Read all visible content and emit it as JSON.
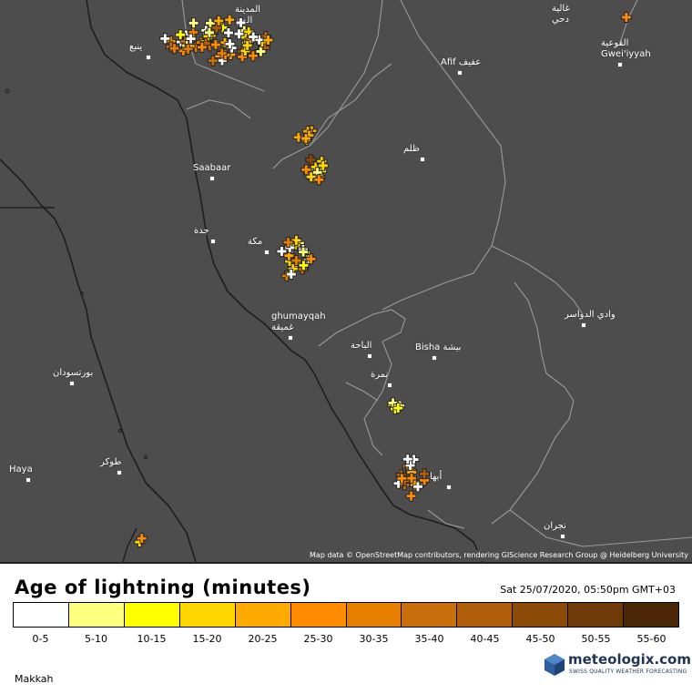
{
  "map": {
    "attribution": "Map data © OpenStreetMap contributors, rendering GIScience Research Group @ Heidelberg University",
    "cities": [
      {
        "label": "المدينة\nالمن"
      },
      {
        "label": "ينبع"
      },
      {
        "label": "Afif عفيف"
      },
      {
        "label": "القوعية\nGwei'iyyah"
      },
      {
        "label": "غالية\nدحي"
      },
      {
        "label": "ظلم"
      },
      {
        "label": "Saabaar"
      },
      {
        "label": "جدة"
      },
      {
        "label": "مكة"
      },
      {
        "label": "ghumayqah\nغميقة"
      },
      {
        "label": "الباحة"
      },
      {
        "label": "Bisha بيشة"
      },
      {
        "label": "وادي الدواسر"
      },
      {
        "label": "نمرة"
      },
      {
        "label": "بورتسودان"
      },
      {
        "label": "طوكر"
      },
      {
        "label": "Haya"
      },
      {
        "label": "أبها"
      },
      {
        "label": "نجران"
      }
    ],
    "strikes_icon": "plus-icon"
  },
  "legend": {
    "title": "Age of lightning (minutes)",
    "timestamp": "Sat 25/07/2020, 05:50pm GMT+03",
    "ranges": [
      {
        "label": "0-5",
        "color": "#ffffff"
      },
      {
        "label": "5-10",
        "color": "#ffff80"
      },
      {
        "label": "10-15",
        "color": "#ffff00"
      },
      {
        "label": "15-20",
        "color": "#ffd700"
      },
      {
        "label": "20-25",
        "color": "#ffaa00"
      },
      {
        "label": "25-30",
        "color": "#ff8c00"
      },
      {
        "label": "30-35",
        "color": "#e67e00"
      },
      {
        "label": "35-40",
        "color": "#c86e0a"
      },
      {
        "label": "40-45",
        "color": "#b05e0a"
      },
      {
        "label": "45-50",
        "color": "#8c4a08"
      },
      {
        "label": "50-55",
        "color": "#6e3a08"
      },
      {
        "label": "55-60",
        "color": "#4a2606"
      }
    ],
    "region": "Makkah"
  },
  "brand": {
    "name": "meteologix.com",
    "tagline": "SWISS QUALITY WEATHER FORECASTING"
  }
}
